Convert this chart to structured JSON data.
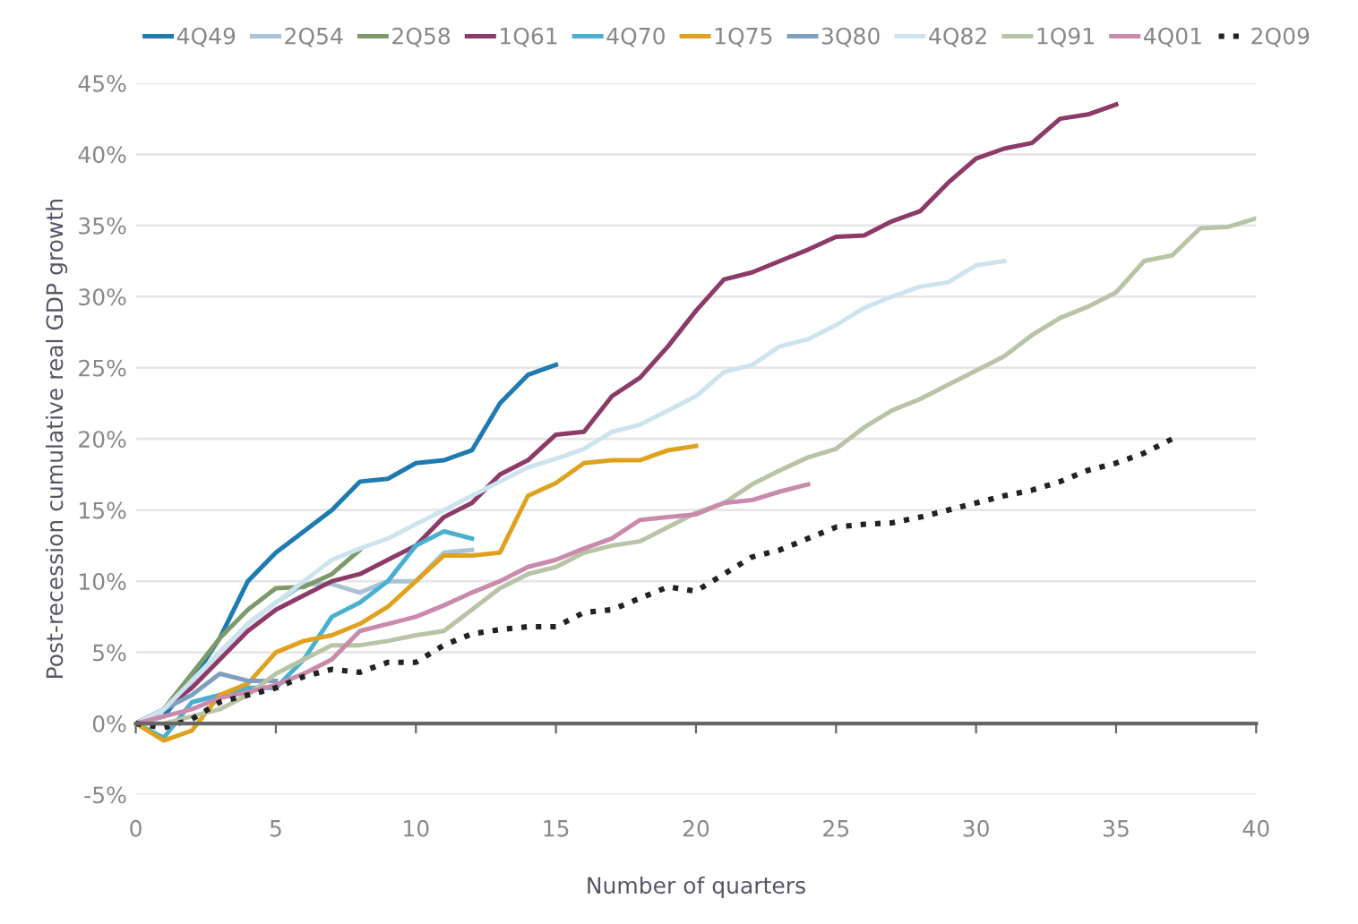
{
  "chart_data": {
    "type": "line",
    "xlabel": "Number of quarters",
    "ylabel": "Post-recession cumulative real GDP growth",
    "x": [
      0,
      1,
      2,
      3,
      4,
      5,
      6,
      7,
      8,
      9,
      10,
      11,
      12,
      13,
      14,
      15,
      16,
      17,
      18,
      19,
      20,
      21,
      22,
      23,
      24,
      25,
      26,
      27,
      28,
      29,
      30,
      31,
      32,
      33,
      34,
      35,
      36,
      37,
      38,
      39,
      40
    ],
    "xlim": [
      0,
      40
    ],
    "xticks": [
      0,
      5,
      10,
      15,
      20,
      25,
      30,
      35,
      40
    ],
    "ylim": [
      -5,
      45
    ],
    "yticks": [
      {
        "value": -5,
        "label": "-5%"
      },
      {
        "value": 0,
        "label": "0%"
      },
      {
        "value": 5,
        "label": "5%"
      },
      {
        "value": 10,
        "label": "10%"
      },
      {
        "value": 15,
        "label": "15%"
      },
      {
        "value": 20,
        "label": "20%"
      },
      {
        "value": 25,
        "label": "25%"
      },
      {
        "value": 30,
        "label": "30%"
      },
      {
        "value": 35,
        "label": "35%"
      },
      {
        "value": 40,
        "label": "40%"
      },
      {
        "value": 45,
        "label": "45%"
      }
    ],
    "grid": "y",
    "legend": "top left",
    "marker": "none",
    "series": [
      {
        "name": "4Q49",
        "color": "#1f7ab0",
        "line_style": "solid",
        "values": [
          0,
          0.5,
          3,
          6,
          10,
          12,
          13.5,
          15,
          17,
          17.2,
          18.3,
          18.5,
          19.2,
          22.5,
          24.5,
          25.2,
          null,
          null,
          null,
          null,
          null,
          null,
          null,
          null,
          null,
          null,
          null,
          null,
          null,
          null,
          null,
          null,
          null,
          null,
          null,
          null,
          null,
          null,
          null,
          null,
          null
        ]
      },
      {
        "name": "2Q54",
        "color": "#a8c4d6",
        "line_style": "solid",
        "values": [
          0,
          1,
          3,
          5,
          7,
          8.5,
          9.8,
          9.8,
          9.2,
          10,
          10,
          12,
          12.2,
          null,
          null,
          null,
          null,
          null,
          null,
          null,
          null,
          null,
          null,
          null,
          null,
          null,
          null,
          null,
          null,
          null,
          null,
          null,
          null,
          null,
          null,
          null,
          null,
          null,
          null,
          null,
          null
        ]
      },
      {
        "name": "2Q58",
        "color": "#7e9a6a",
        "line_style": "solid",
        "values": [
          0,
          1,
          3.5,
          6,
          8,
          9.5,
          9.6,
          10.5,
          12.2,
          null,
          null,
          null,
          null,
          null,
          null,
          null,
          null,
          null,
          null,
          null,
          null,
          null,
          null,
          null,
          null,
          null,
          null,
          null,
          null,
          null,
          null,
          null,
          null,
          null,
          null,
          null,
          null,
          null,
          null,
          null,
          null
        ]
      },
      {
        "name": "1Q61",
        "color": "#8c3a67",
        "line_style": "solid",
        "values": [
          0,
          1,
          2.5,
          4.5,
          6.5,
          8,
          9,
          10,
          10.5,
          11.5,
          12.5,
          14.5,
          15.5,
          17.5,
          18.5,
          20.3,
          20.5,
          23,
          24.3,
          26.5,
          29,
          31.2,
          31.7,
          32.5,
          33.3,
          34.2,
          34.3,
          35.3,
          36,
          38,
          39.7,
          40.4,
          40.8,
          42.5,
          42.8,
          43.5,
          null,
          null,
          null,
          null,
          null
        ]
      },
      {
        "name": "4Q70",
        "color": "#4ab0d0",
        "line_style": "solid",
        "values": [
          0,
          -1,
          1.5,
          2,
          2.5,
          2.5,
          4.5,
          7.5,
          8.5,
          10,
          12.5,
          13.5,
          13,
          null,
          null,
          null,
          null,
          null,
          null,
          null,
          null,
          null,
          null,
          null,
          null,
          null,
          null,
          null,
          null,
          null,
          null,
          null,
          null,
          null,
          null,
          null,
          null,
          null,
          null,
          null,
          null
        ]
      },
      {
        "name": "1Q75",
        "color": "#e0a21e",
        "line_style": "solid",
        "values": [
          0,
          -1.2,
          -0.5,
          2,
          2.8,
          5,
          5.8,
          6.2,
          7,
          8.2,
          10,
          11.8,
          11.8,
          12,
          16,
          16.9,
          18.3,
          18.5,
          18.5,
          19.2,
          19.5,
          null,
          null,
          null,
          null,
          null,
          null,
          null,
          null,
          null,
          null,
          null,
          null,
          null,
          null,
          null,
          null,
          null,
          null,
          null,
          null
        ]
      },
      {
        "name": "3Q80",
        "color": "#7f9fbf",
        "line_style": "solid",
        "values": [
          0,
          1,
          2,
          3.5,
          3,
          3,
          null,
          null,
          null,
          null,
          null,
          null,
          null,
          null,
          null,
          null,
          null,
          null,
          null,
          null,
          null,
          null,
          null,
          null,
          null,
          null,
          null,
          null,
          null,
          null,
          null,
          null,
          null,
          null,
          null,
          null,
          null,
          null,
          null,
          null,
          null
        ]
      },
      {
        "name": "4Q82",
        "color": "#cde4ee",
        "line_style": "solid",
        "values": [
          0,
          1,
          3,
          5,
          7,
          8.5,
          10,
          11.5,
          12.3,
          13,
          14,
          15,
          16,
          17,
          18,
          18.6,
          19.3,
          20.5,
          21,
          22,
          23,
          24.7,
          25.2,
          26.5,
          27,
          28,
          29.2,
          30,
          30.7,
          31,
          32.2,
          32.5,
          null,
          null,
          null,
          null,
          null,
          null,
          null,
          null,
          null
        ]
      },
      {
        "name": "1Q91",
        "color": "#b8c4a6",
        "line_style": "solid",
        "values": [
          0,
          0,
          0.5,
          1,
          2,
          3.5,
          4.5,
          5.5,
          5.5,
          5.8,
          6.2,
          6.5,
          8,
          9.5,
          10.5,
          11,
          12,
          12.5,
          12.8,
          13.8,
          14.8,
          15.5,
          16.8,
          17.8,
          18.7,
          19.3,
          20.8,
          22,
          22.8,
          23.8,
          24.8,
          25.8,
          27.3,
          28.5,
          29.3,
          30.3,
          32.5,
          32.9,
          34.8,
          34.9,
          35.5
        ]
      },
      {
        "name": "4Q01",
        "color": "#c98aab",
        "line_style": "solid",
        "values": [
          0,
          0.5,
          1,
          1.8,
          2.2,
          2.7,
          3.5,
          4.5,
          6.5,
          7,
          7.5,
          8.3,
          9.2,
          10,
          11,
          11.5,
          12.3,
          13,
          14.3,
          14.5,
          14.7,
          15.5,
          15.7,
          16.3,
          16.8,
          null,
          null,
          null,
          null,
          null,
          null,
          null,
          null,
          null,
          null,
          null,
          null,
          null,
          null,
          null,
          null
        ]
      },
      {
        "name": "2Q09",
        "color": "#222222",
        "line_style": "dotted",
        "values": [
          0,
          -0.3,
          0.3,
          1.5,
          2,
          2.5,
          3.3,
          3.8,
          3.6,
          4.3,
          4.3,
          5.5,
          6.3,
          6.6,
          6.8,
          6.8,
          7.8,
          8,
          8.8,
          9.6,
          9.3,
          10.5,
          11.7,
          12.2,
          13,
          13.8,
          14,
          14.1,
          14.5,
          15,
          15.5,
          16,
          16.4,
          17,
          17.8,
          18.3,
          19,
          20,
          null,
          null,
          null
        ]
      }
    ]
  }
}
